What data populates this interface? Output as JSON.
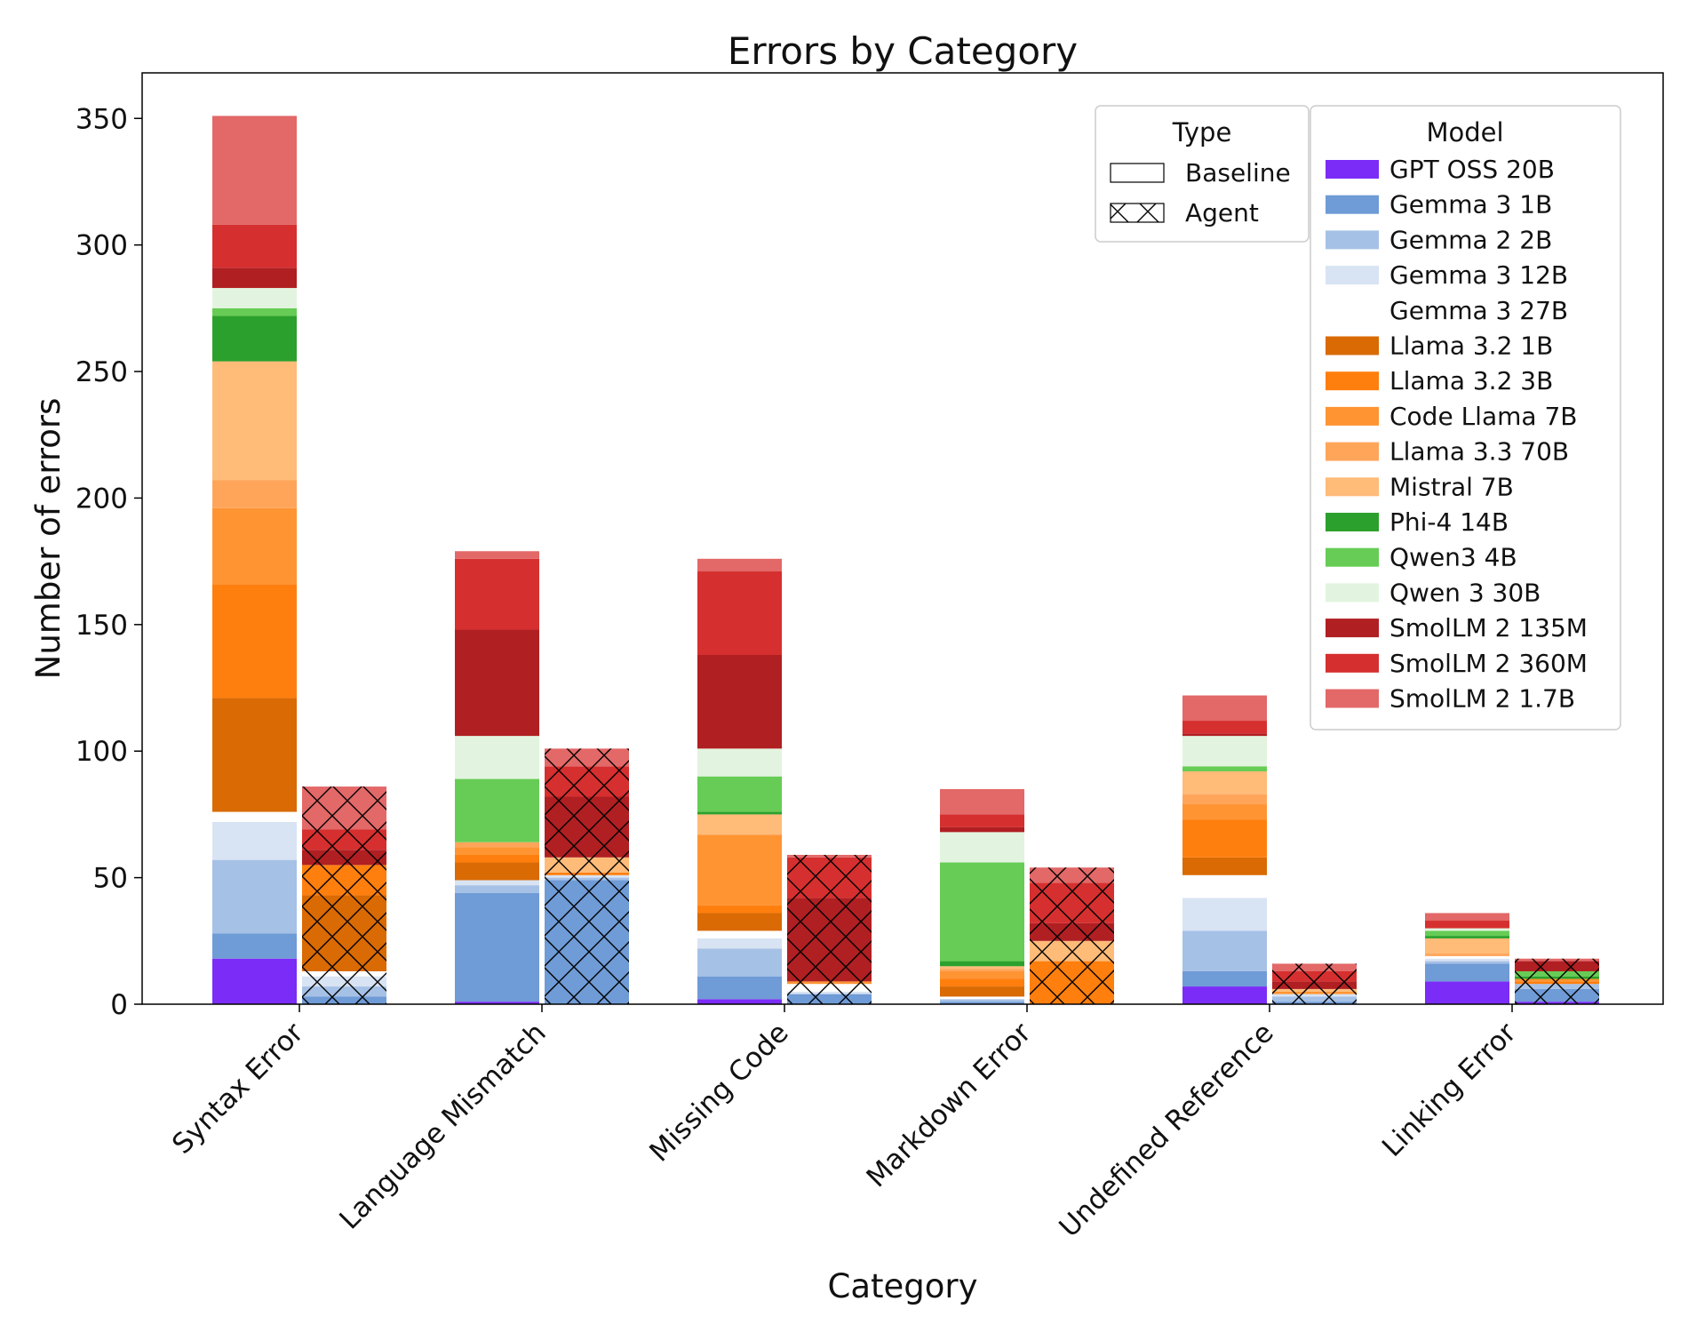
{
  "chart_data": {
    "type": "bar",
    "stacked": true,
    "title": "Errors by Category",
    "xlabel": "Category",
    "ylabel": "Number of errors",
    "ylim": [
      0,
      368
    ],
    "yticks": [
      0,
      50,
      100,
      150,
      200,
      250,
      300,
      350
    ],
    "grid": false,
    "categories": [
      "Syntax Error",
      "Language Mismatch",
      "Missing Code",
      "Markdown Error",
      "Undefined Reference",
      "Linking Error"
    ],
    "types": [
      {
        "name": "Baseline",
        "pattern": "solid"
      },
      {
        "name": "Agent",
        "pattern": "crosshatch"
      }
    ],
    "type_legend_title": "Type",
    "model_legend_title": "Model",
    "models": [
      {
        "name": "GPT OSS 20B",
        "color": "#7b2cf7"
      },
      {
        "name": "Gemma 3 1B",
        "color": "#6f9bd6"
      },
      {
        "name": "Gemma 2 2B",
        "color": "#a6c1e6"
      },
      {
        "name": "Gemma 3 12B",
        "color": "#d8e3f3"
      },
      {
        "name": "Gemma 3 27B",
        "color": "#ffffff"
      },
      {
        "name": "Llama 3.2 1B",
        "color": "#d96a04"
      },
      {
        "name": "Llama 3.2 3B",
        "color": "#ff7f0e"
      },
      {
        "name": "Code Llama 7B",
        "color": "#ff9433"
      },
      {
        "name": "Llama 3.3 70B",
        "color": "#ffa55a"
      },
      {
        "name": "Mistral 7B",
        "color": "#ffbb78"
      },
      {
        "name": "Phi-4 14B",
        "color": "#2ca02c"
      },
      {
        "name": "Qwen3 4B",
        "color": "#66cc55"
      },
      {
        "name": "Qwen 3 30B",
        "color": "#e2f4df"
      },
      {
        "name": "SmolLM 2 135M",
        "color": "#b01f22"
      },
      {
        "name": "SmolLM 2 360M",
        "color": "#d62f2f"
      },
      {
        "name": "SmolLM 2 1.7B",
        "color": "#e36868"
      }
    ],
    "series": [
      {
        "name": "Baseline",
        "values_by_category": [
          [
            18,
            10,
            29,
            15,
            4,
            45,
            45,
            30,
            11,
            47,
            18,
            3,
            8,
            8,
            17,
            43
          ],
          [
            1,
            43,
            3,
            2,
            0,
            7,
            3,
            3,
            2,
            0,
            0,
            25,
            17,
            42,
            28,
            3
          ],
          [
            2,
            9,
            11,
            4,
            3,
            7,
            3,
            28,
            0,
            8,
            1,
            14,
            11,
            37,
            33,
            5
          ],
          [
            0,
            1,
            1,
            0,
            1,
            4,
            3,
            3,
            1,
            1,
            2,
            39,
            12,
            2,
            5,
            10
          ],
          [
            7,
            6,
            16,
            13,
            9,
            7,
            15,
            6,
            4,
            9,
            0,
            2,
            12,
            1,
            5,
            10
          ],
          [
            9,
            7,
            1,
            1,
            1,
            0,
            0,
            0,
            1,
            6,
            1,
            2,
            1,
            0,
            3,
            3
          ]
        ]
      },
      {
        "name": "Agent",
        "values_by_category": [
          [
            0,
            3,
            4,
            4,
            2,
            30,
            12,
            0,
            0,
            0,
            0,
            0,
            0,
            6,
            8,
            17
          ],
          [
            0,
            49,
            1,
            1,
            0,
            0,
            1,
            0,
            0,
            6,
            0,
            0,
            0,
            24,
            12,
            7
          ],
          [
            0,
            4,
            0,
            1,
            3,
            0,
            0,
            1,
            0,
            0,
            0,
            0,
            0,
            33,
            16,
            1
          ],
          [
            0,
            0,
            0,
            0,
            0,
            0,
            17,
            0,
            0,
            8,
            0,
            0,
            0,
            7,
            16,
            6
          ],
          [
            0,
            1,
            2,
            1,
            0,
            0,
            0,
            1,
            0,
            1,
            0,
            0,
            0,
            3,
            4,
            3
          ],
          [
            1,
            5,
            2,
            0,
            0,
            0,
            1,
            1,
            0,
            0,
            1,
            2,
            0,
            4,
            0,
            1
          ]
        ]
      }
    ]
  }
}
